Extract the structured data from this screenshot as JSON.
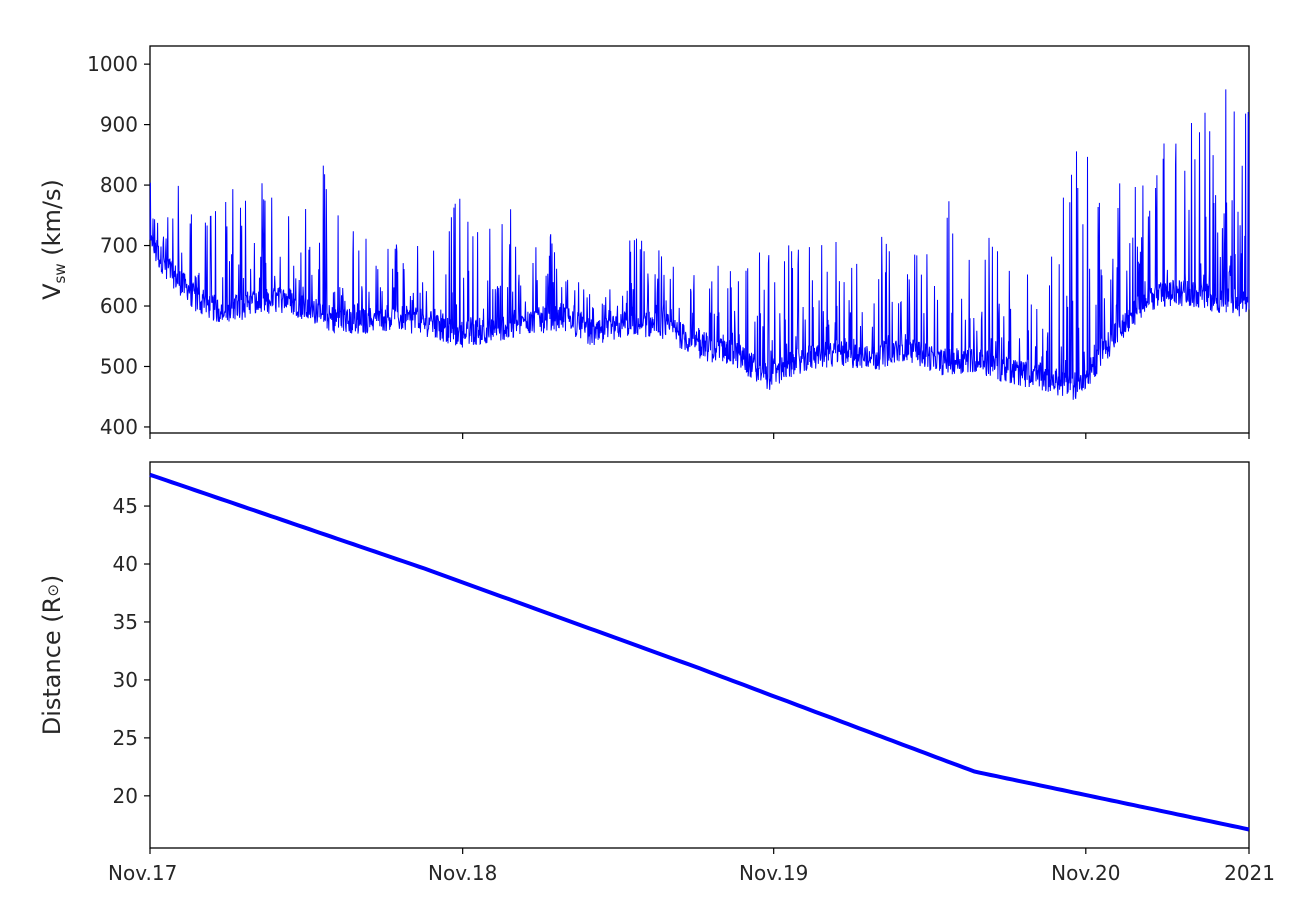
{
  "colors": {
    "series": "#0000ff",
    "axes": "#000000",
    "text": "#262626",
    "background": "#ffffff"
  },
  "chart_data": [
    {
      "type": "line",
      "ylabel": {
        "main": "V",
        "sub": "sw",
        "rest": " (km/s)"
      },
      "xlabel": "",
      "ylim": [
        390,
        1030
      ],
      "yticks": [
        400,
        500,
        600,
        700,
        800,
        900,
        1000
      ],
      "xticks": [
        "Nov.17",
        "Nov.18",
        "Nov.19",
        "Nov.20",
        "2021"
      ],
      "xtick_labels_visible": false,
      "grid": false,
      "series": [
        {
          "description_of_pattern": "highly variable solar wind speed with frequent spikes",
          "x": [
            "2020-11-17 00:00",
            "2020-11-17 02:00",
            "2020-11-17 04:00",
            "2020-11-17 06:00",
            "2020-11-17 09:00",
            "2020-11-17 12:00",
            "2020-11-17 15:00",
            "2020-11-17 18:00",
            "2020-11-17 21:00",
            "2020-11-18 00:00",
            "2020-11-18 03:00",
            "2020-11-18 06:00",
            "2020-11-18 09:00",
            "2020-11-18 12:00",
            "2020-11-18 15:00",
            "2020-11-18 18:00",
            "2020-11-18 21:00",
            "2020-11-19 00:00",
            "2020-11-19 03:00",
            "2020-11-19 06:00",
            "2020-11-19 09:00",
            "2020-11-19 12:00",
            "2020-11-19 15:00",
            "2020-11-19 18:00",
            "2020-11-19 21:00",
            "2020-11-20 00:00",
            "2020-11-20 03:00",
            "2020-11-20 06:00",
            "2020-11-20 09:00",
            "2020-11-20 12:00",
            "2020-11-20 15:00",
            "2020-11-20 18:00",
            "2020-11-20 21:00",
            "2020-11-21 00:00"
          ],
          "baseline": [
            690,
            640,
            600,
            580,
            590,
            600,
            570,
            560,
            570,
            560,
            540,
            550,
            560,
            570,
            540,
            560,
            555,
            520,
            510,
            470,
            500,
            510,
            500,
            520,
            495,
            500,
            480,
            470,
            450,
            530,
            600,
            610,
            600,
            590
          ],
          "peaks": [
            820,
            850,
            730,
            780,
            820,
            780,
            850,
            720,
            700,
            720,
            800,
            740,
            800,
            700,
            600,
            720,
            700,
            660,
            690,
            700,
            710,
            720,
            730,
            700,
            780,
            760,
            720,
            610,
            910,
            920,
            830,
            950,
            990,
            930
          ]
        }
      ]
    },
    {
      "type": "line",
      "ylabel": {
        "main": "Distance (R",
        "sub": "⊙",
        "rest": ")"
      },
      "xlabel": "",
      "ylim": [
        15.5,
        48.8
      ],
      "yticks": [
        20,
        25,
        30,
        35,
        40,
        45
      ],
      "xticks": [
        "Nov.17",
        "Nov.18",
        "Nov.19",
        "Nov.20",
        "2021"
      ],
      "grid": false,
      "series": [
        {
          "x": [
            "2020-11-17 00:00",
            "2020-11-18 00:00",
            "2020-11-19 00:00",
            "2020-11-20 00:00",
            "2020-11-21 00:00"
          ],
          "values": [
            47.7,
            39.6,
            31.0,
            22.1,
            17.1
          ]
        }
      ]
    }
  ]
}
